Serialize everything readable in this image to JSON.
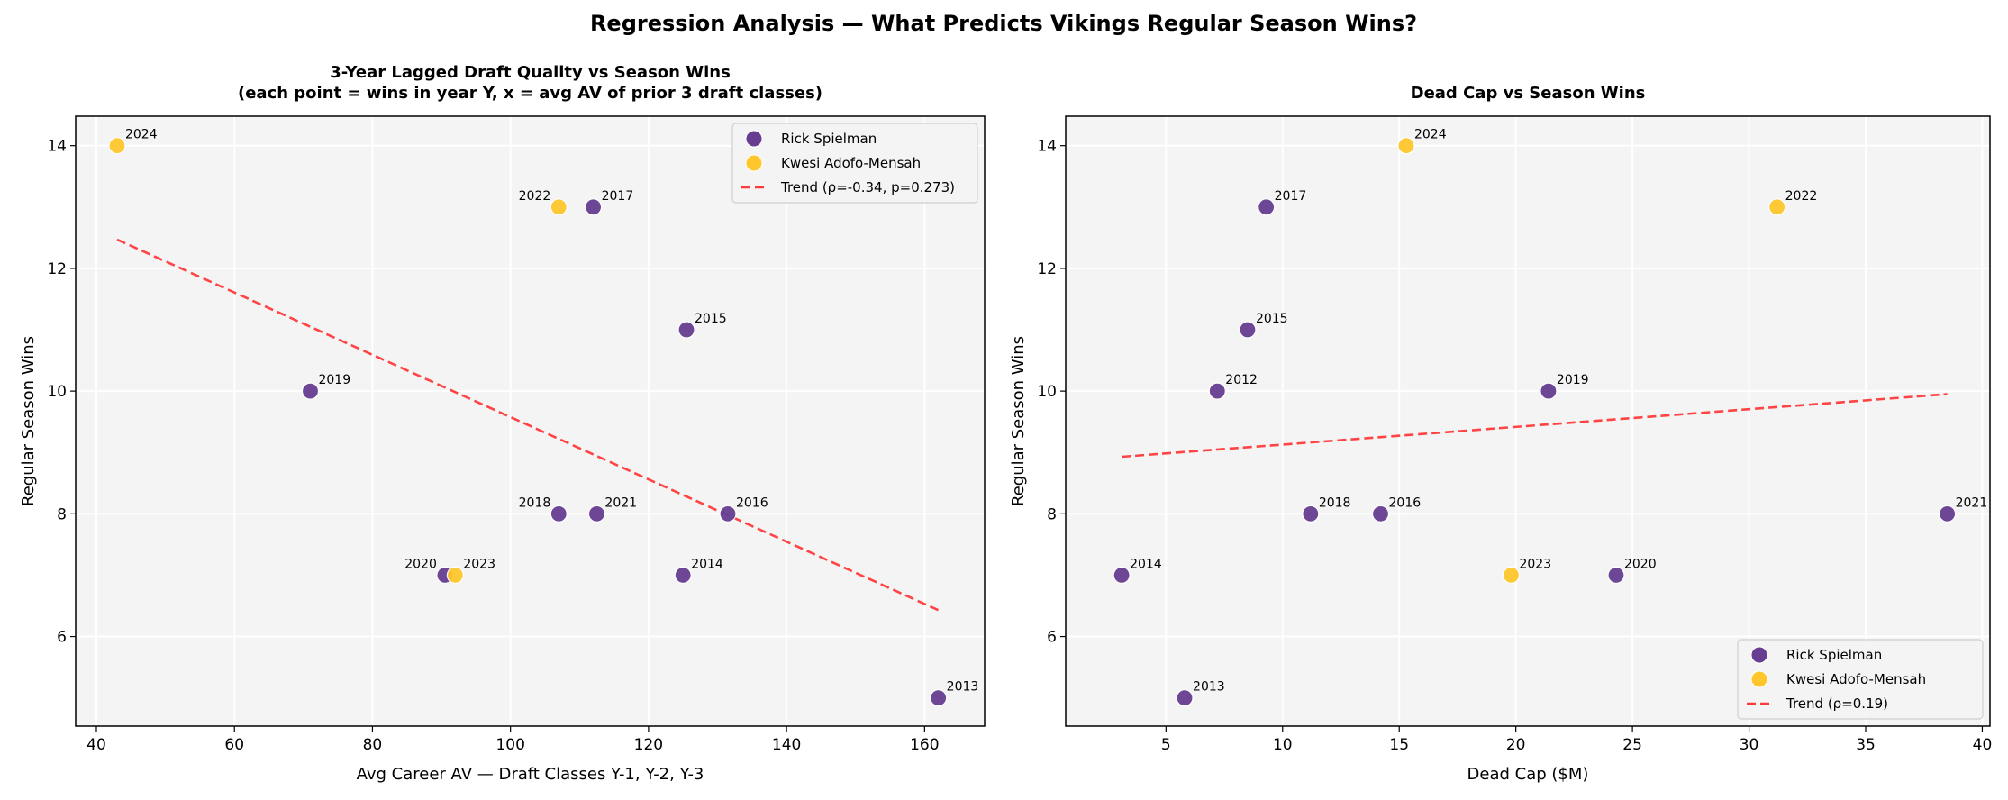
{
  "suptitle": "Regression Analysis — What Predicts Vikings Regular Season Wins?",
  "colors": {
    "Rick Spielman": "#663d91",
    "Kwesi Adofo-Mensah": "#ffc72c",
    "trend": "#ff3b3b",
    "panel": "#f4f4f4"
  },
  "chart_data": [
    {
      "type": "scatter",
      "title": "3-Year Lagged Draft Quality vs Season Wins",
      "subtitle": "(each point = wins in year Y, x = avg AV of prior 3 draft classes)",
      "xlabel": "Avg Career AV — Draft Classes Y-1, Y-2, Y-3",
      "ylabel": "Regular Season Wins",
      "xlim": [
        37,
        168.7
      ],
      "ylim": [
        4.54,
        14.48
      ],
      "xticks": [
        40,
        60,
        80,
        100,
        120,
        140,
        160
      ],
      "yticks": [
        6,
        8,
        10,
        12,
        14
      ],
      "grid": true,
      "legend_position": "top-right",
      "legend": [
        "Rick Spielman",
        "Kwesi Adofo-Mensah",
        "Trend (ρ=-0.34, p=0.273)"
      ],
      "points": [
        {
          "label": "2013",
          "x": 162,
          "y": 5,
          "gm": "Rick Spielman"
        },
        {
          "label": "2014",
          "x": 125,
          "y": 7,
          "gm": "Rick Spielman"
        },
        {
          "label": "2015",
          "x": 125.5,
          "y": 11,
          "gm": "Rick Spielman"
        },
        {
          "label": "2016",
          "x": 131.5,
          "y": 8,
          "gm": "Rick Spielman"
        },
        {
          "label": "2017",
          "x": 112,
          "y": 13,
          "gm": "Rick Spielman"
        },
        {
          "label": "2018",
          "x": 107,
          "y": 8,
          "gm": "Rick Spielman"
        },
        {
          "label": "2019",
          "x": 71,
          "y": 10,
          "gm": "Rick Spielman"
        },
        {
          "label": "2020",
          "x": 90.5,
          "y": 7,
          "gm": "Rick Spielman"
        },
        {
          "label": "2021",
          "x": 112.5,
          "y": 8,
          "gm": "Rick Spielman"
        },
        {
          "label": "2022",
          "x": 107,
          "y": 13,
          "gm": "Kwesi Adofo-Mensah"
        },
        {
          "label": "2023",
          "x": 92,
          "y": 7,
          "gm": "Kwesi Adofo-Mensah"
        },
        {
          "label": "2024",
          "x": 43,
          "y": 14,
          "gm": "Kwesi Adofo-Mensah"
        }
      ],
      "trend": {
        "x": [
          43,
          162
        ],
        "y": [
          12.47,
          6.43
        ]
      }
    },
    {
      "type": "scatter",
      "title": "Dead Cap vs Season Wins",
      "subtitle": "",
      "xlabel": "Dead Cap ($M)",
      "ylabel": "Regular Season Wins",
      "xlim": [
        0.7,
        40.33
      ],
      "ylim": [
        4.54,
        14.48
      ],
      "xticks": [
        5,
        10,
        15,
        20,
        25,
        30,
        35,
        40
      ],
      "yticks": [
        6,
        8,
        10,
        12,
        14
      ],
      "grid": true,
      "legend_position": "bottom-right",
      "legend": [
        "Rick Spielman",
        "Kwesi Adofo-Mensah",
        "Trend (ρ=0.19)"
      ],
      "points": [
        {
          "label": "2012",
          "x": 7.2,
          "y": 10,
          "gm": "Rick Spielman"
        },
        {
          "label": "2013",
          "x": 5.8,
          "y": 5,
          "gm": "Rick Spielman"
        },
        {
          "label": "2014",
          "x": 3.1,
          "y": 7,
          "gm": "Rick Spielman"
        },
        {
          "label": "2015",
          "x": 8.5,
          "y": 11,
          "gm": "Rick Spielman"
        },
        {
          "label": "2016",
          "x": 14.2,
          "y": 8,
          "gm": "Rick Spielman"
        },
        {
          "label": "2017",
          "x": 9.3,
          "y": 13,
          "gm": "Rick Spielman"
        },
        {
          "label": "2018",
          "x": 11.2,
          "y": 8,
          "gm": "Rick Spielman"
        },
        {
          "label": "2019",
          "x": 21.4,
          "y": 10,
          "gm": "Rick Spielman"
        },
        {
          "label": "2020",
          "x": 24.3,
          "y": 7,
          "gm": "Rick Spielman"
        },
        {
          "label": "2021",
          "x": 38.5,
          "y": 8,
          "gm": "Rick Spielman"
        },
        {
          "label": "2022",
          "x": 31.2,
          "y": 13,
          "gm": "Kwesi Adofo-Mensah"
        },
        {
          "label": "2023",
          "x": 19.8,
          "y": 7,
          "gm": "Kwesi Adofo-Mensah"
        },
        {
          "label": "2024",
          "x": 15.3,
          "y": 14,
          "gm": "Kwesi Adofo-Mensah"
        }
      ],
      "trend": {
        "x": [
          3.1,
          38.5
        ],
        "y": [
          8.93,
          9.95
        ]
      }
    }
  ]
}
